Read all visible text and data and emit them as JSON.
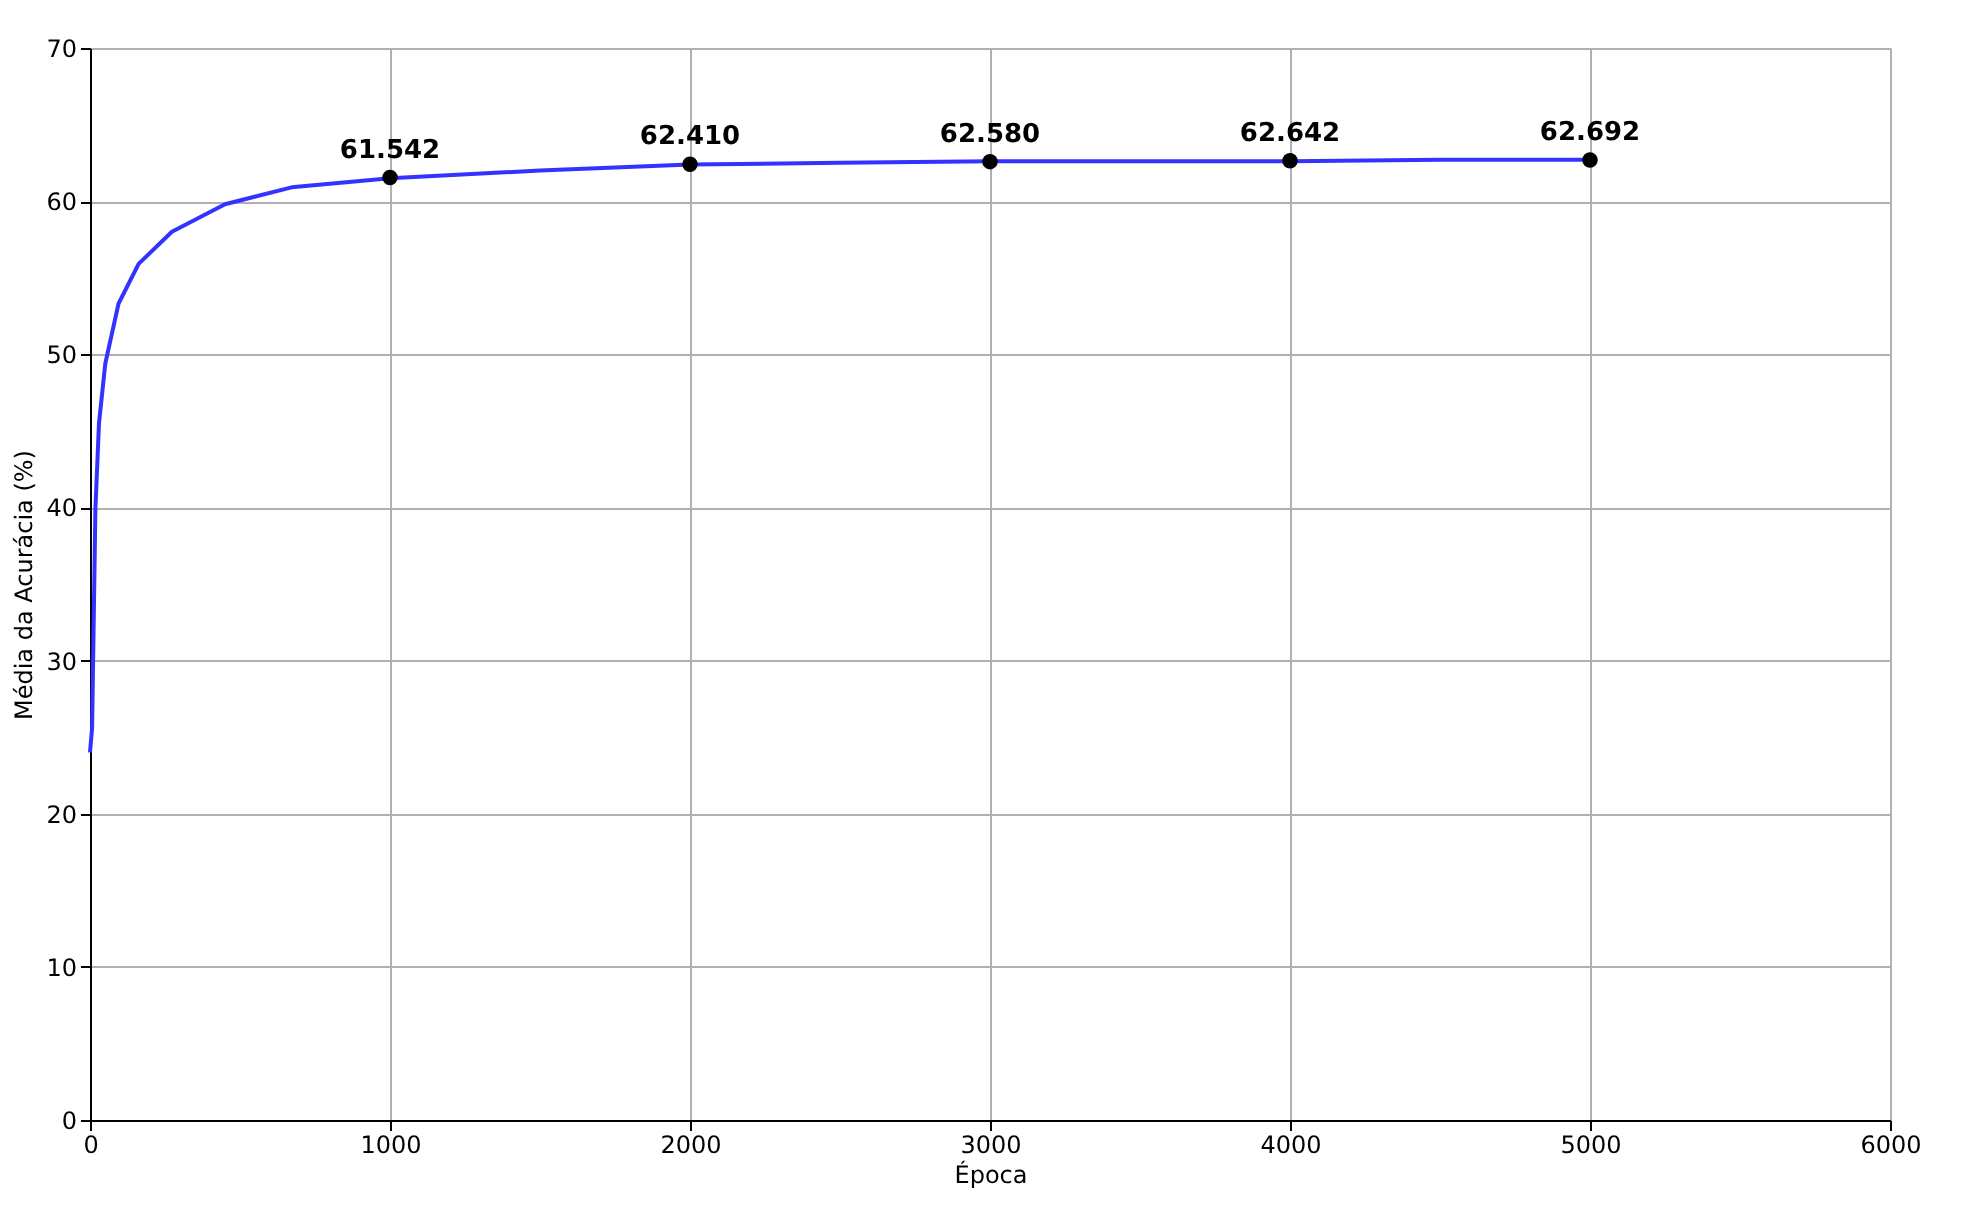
{
  "chart_data": {
    "type": "line",
    "xlabel": "Época",
    "ylabel": "Média da Acurácia (%)",
    "xlim": [
      0,
      6000
    ],
    "xticks": [
      0,
      1000,
      2000,
      3000,
      4000,
      5000,
      6000
    ],
    "ylim": [
      0,
      70
    ],
    "yticks": [
      0,
      10,
      20,
      30,
      40,
      50,
      60,
      70
    ],
    "grid": true,
    "series": [
      {
        "color": "#3333ff",
        "marker": "none",
        "x": [
          0,
          7,
          18,
          30,
          51,
          95,
          162,
          273,
          450,
          672,
          1000,
          1500,
          2000,
          2500,
          3000,
          3500,
          4000,
          4500,
          5000
        ],
        "values": [
          24,
          25.6,
          39.9,
          45.5,
          49.4,
          53.3,
          55.9,
          58.0,
          59.8,
          60.9,
          61.5,
          62.0,
          62.4,
          62.5,
          62.6,
          62.6,
          62.6,
          62.7,
          62.7
        ]
      },
      {
        "type": "scatter",
        "color": "#000000",
        "marker": "circle",
        "x": [
          1000,
          2000,
          3000,
          4000,
          5000
        ],
        "values": [
          61.542,
          62.41,
          62.58,
          62.642,
          62.692
        ],
        "value_labels": [
          "61.542",
          "62.410",
          "62.580",
          "62.642",
          "62.692"
        ]
      }
    ]
  }
}
